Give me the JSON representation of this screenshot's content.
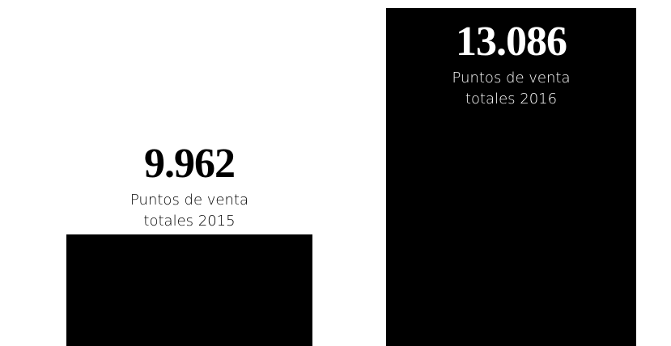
{
  "chart_data": {
    "type": "bar",
    "categories": [
      "Puntos de venta totales 2015",
      "Puntos de venta totales 2016"
    ],
    "values": [
      9962,
      13086
    ],
    "value_labels": [
      "9.962",
      "13.086"
    ],
    "color": "#000000",
    "ylim": [
      8421,
      13086
    ]
  }
}
